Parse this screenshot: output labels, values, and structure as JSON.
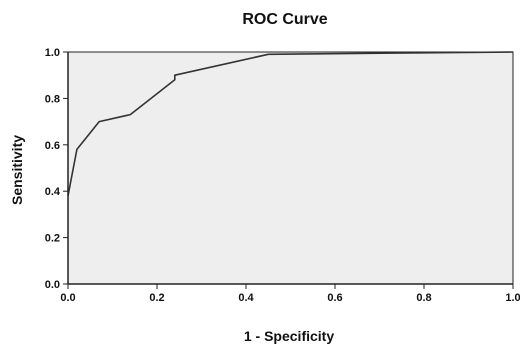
{
  "chart_data": {
    "type": "line",
    "title": "ROC Curve",
    "xlabel": "1 - Specificity",
    "ylabel": "Sensitivity",
    "xlim": [
      0,
      1
    ],
    "ylim": [
      0,
      1
    ],
    "x_ticks": [
      "0.0",
      "0.2",
      "0.4",
      "0.6",
      "0.8",
      "1.0"
    ],
    "y_ticks": [
      "0.0",
      "0.2",
      "0.4",
      "0.6",
      "0.8",
      "1.0"
    ],
    "grid": false,
    "series": [
      {
        "x": [
          0.0,
          0.0,
          0.02,
          0.07,
          0.14,
          0.24,
          0.24,
          0.45,
          1.0
        ],
        "y": [
          0.38,
          0.38,
          0.58,
          0.7,
          0.73,
          0.88,
          0.9,
          0.99,
          1.0
        ]
      }
    ]
  },
  "colors": {
    "background": "#ffffff",
    "plot_area": "#eeeeee",
    "line": "#333333",
    "axis": "#222222"
  }
}
